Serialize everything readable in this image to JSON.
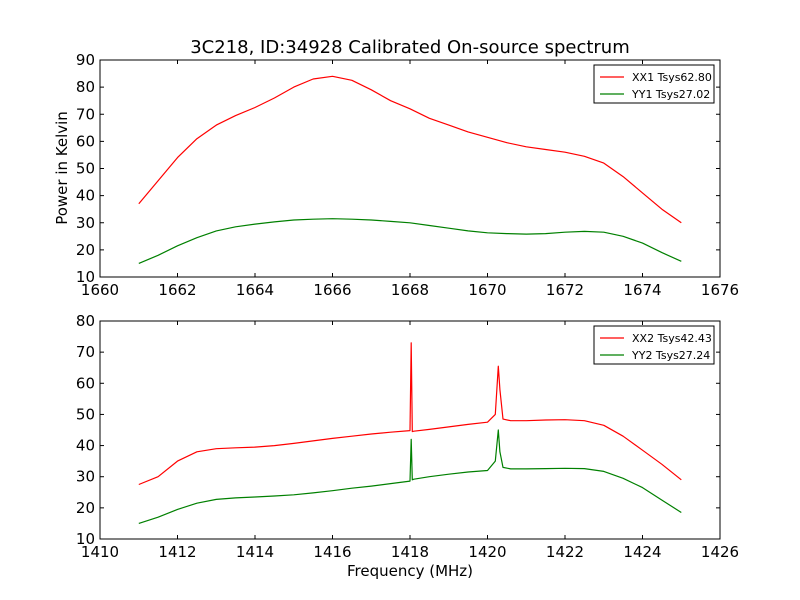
{
  "figure": {
    "title": "3C218, ID:34928 Calibrated On-source spectrum",
    "xlabel": "Frequency (MHz)",
    "ylabel": "Power in Kelvin"
  },
  "chart_data": [
    {
      "type": "line",
      "title": "3C218, ID:34928 Calibrated On-source spectrum",
      "xlabel": "",
      "ylabel": "Power in Kelvin",
      "xlim": [
        1660,
        1676
      ],
      "ylim": [
        10,
        90
      ],
      "xticks": [
        1660,
        1662,
        1664,
        1666,
        1668,
        1670,
        1672,
        1674,
        1676
      ],
      "yticks": [
        10,
        20,
        30,
        40,
        50,
        60,
        70,
        80,
        90
      ],
      "legend_position": "top-right",
      "grid": false,
      "series": [
        {
          "name": "XX1 Tsys62.80",
          "color": "#ff0000",
          "x": [
            1661.0,
            1661.5,
            1662.0,
            1662.5,
            1663.0,
            1663.5,
            1664.0,
            1664.5,
            1665.0,
            1665.5,
            1666.0,
            1666.5,
            1667.0,
            1667.5,
            1668.0,
            1668.5,
            1669.0,
            1669.5,
            1670.0,
            1670.5,
            1671.0,
            1671.5,
            1672.0,
            1672.5,
            1673.0,
            1673.5,
            1674.0,
            1674.5,
            1675.0
          ],
          "y": [
            37.0,
            45.5,
            54.0,
            61.0,
            66.0,
            69.5,
            72.5,
            76.0,
            80.0,
            83.0,
            84.0,
            82.5,
            79.0,
            75.0,
            72.0,
            68.5,
            66.0,
            63.5,
            61.5,
            59.5,
            58.0,
            57.0,
            56.0,
            54.5,
            52.0,
            47.0,
            41.0,
            35.0,
            30.0
          ]
        },
        {
          "name": "YY1 Tsys27.02",
          "color": "#008000",
          "x": [
            1661.0,
            1661.5,
            1662.0,
            1662.5,
            1663.0,
            1663.5,
            1664.0,
            1664.5,
            1665.0,
            1665.5,
            1666.0,
            1666.5,
            1667.0,
            1667.5,
            1668.0,
            1668.5,
            1669.0,
            1669.5,
            1670.0,
            1670.5,
            1671.0,
            1671.5,
            1672.0,
            1672.5,
            1673.0,
            1673.5,
            1674.0,
            1674.5,
            1675.0
          ],
          "y": [
            15.0,
            18.0,
            21.5,
            24.5,
            27.0,
            28.5,
            29.5,
            30.3,
            31.0,
            31.3,
            31.5,
            31.3,
            31.0,
            30.5,
            30.0,
            29.0,
            28.0,
            27.0,
            26.3,
            26.0,
            25.8,
            26.0,
            26.5,
            26.8,
            26.5,
            25.0,
            22.5,
            19.0,
            15.8
          ]
        }
      ]
    },
    {
      "type": "line",
      "xlabel": "Frequency (MHz)",
      "ylabel": "",
      "xlim": [
        1410,
        1426
      ],
      "ylim": [
        10,
        80
      ],
      "xticks": [
        1410,
        1412,
        1414,
        1416,
        1418,
        1420,
        1422,
        1424,
        1426
      ],
      "yticks": [
        10,
        20,
        30,
        40,
        50,
        60,
        70,
        80
      ],
      "legend_position": "top-right",
      "grid": false,
      "series": [
        {
          "name": "XX2 Tsys42.43",
          "color": "#ff0000",
          "x": [
            1411.0,
            1411.5,
            1412.0,
            1412.5,
            1413.0,
            1413.5,
            1414.0,
            1414.5,
            1415.0,
            1415.5,
            1416.0,
            1416.5,
            1417.0,
            1417.5,
            1418.0,
            1418.03,
            1418.06,
            1418.1,
            1418.5,
            1419.0,
            1419.5,
            1420.0,
            1420.2,
            1420.28,
            1420.32,
            1420.4,
            1420.6,
            1421.0,
            1421.5,
            1422.0,
            1422.5,
            1423.0,
            1423.5,
            1424.0,
            1424.5,
            1425.0
          ],
          "y": [
            27.5,
            30.0,
            35.0,
            38.0,
            39.0,
            39.3,
            39.5,
            40.0,
            40.7,
            41.5,
            42.3,
            43.0,
            43.7,
            44.3,
            44.8,
            73.0,
            44.5,
            44.6,
            45.2,
            46.0,
            46.8,
            47.5,
            50.0,
            65.5,
            58.0,
            48.5,
            48.0,
            48.0,
            48.2,
            48.3,
            48.0,
            46.5,
            43.0,
            38.5,
            34.0,
            29.0
          ]
        },
        {
          "name": "YY2 Tsys27.24",
          "color": "#008000",
          "x": [
            1411.0,
            1411.5,
            1412.0,
            1412.5,
            1413.0,
            1413.5,
            1414.0,
            1414.5,
            1415.0,
            1415.5,
            1416.0,
            1416.5,
            1417.0,
            1417.5,
            1418.0,
            1418.03,
            1418.06,
            1418.1,
            1418.5,
            1419.0,
            1419.5,
            1420.0,
            1420.2,
            1420.28,
            1420.32,
            1420.4,
            1420.6,
            1421.0,
            1421.5,
            1422.0,
            1422.5,
            1423.0,
            1423.5,
            1424.0,
            1424.5,
            1425.0
          ],
          "y": [
            15.0,
            17.0,
            19.5,
            21.5,
            22.7,
            23.2,
            23.5,
            23.8,
            24.2,
            24.8,
            25.5,
            26.3,
            27.0,
            27.8,
            28.6,
            42.0,
            29.0,
            29.2,
            30.0,
            30.8,
            31.5,
            32.0,
            35.0,
            45.0,
            38.0,
            33.0,
            32.5,
            32.5,
            32.6,
            32.7,
            32.6,
            31.7,
            29.5,
            26.5,
            22.5,
            18.5
          ]
        }
      ]
    }
  ]
}
